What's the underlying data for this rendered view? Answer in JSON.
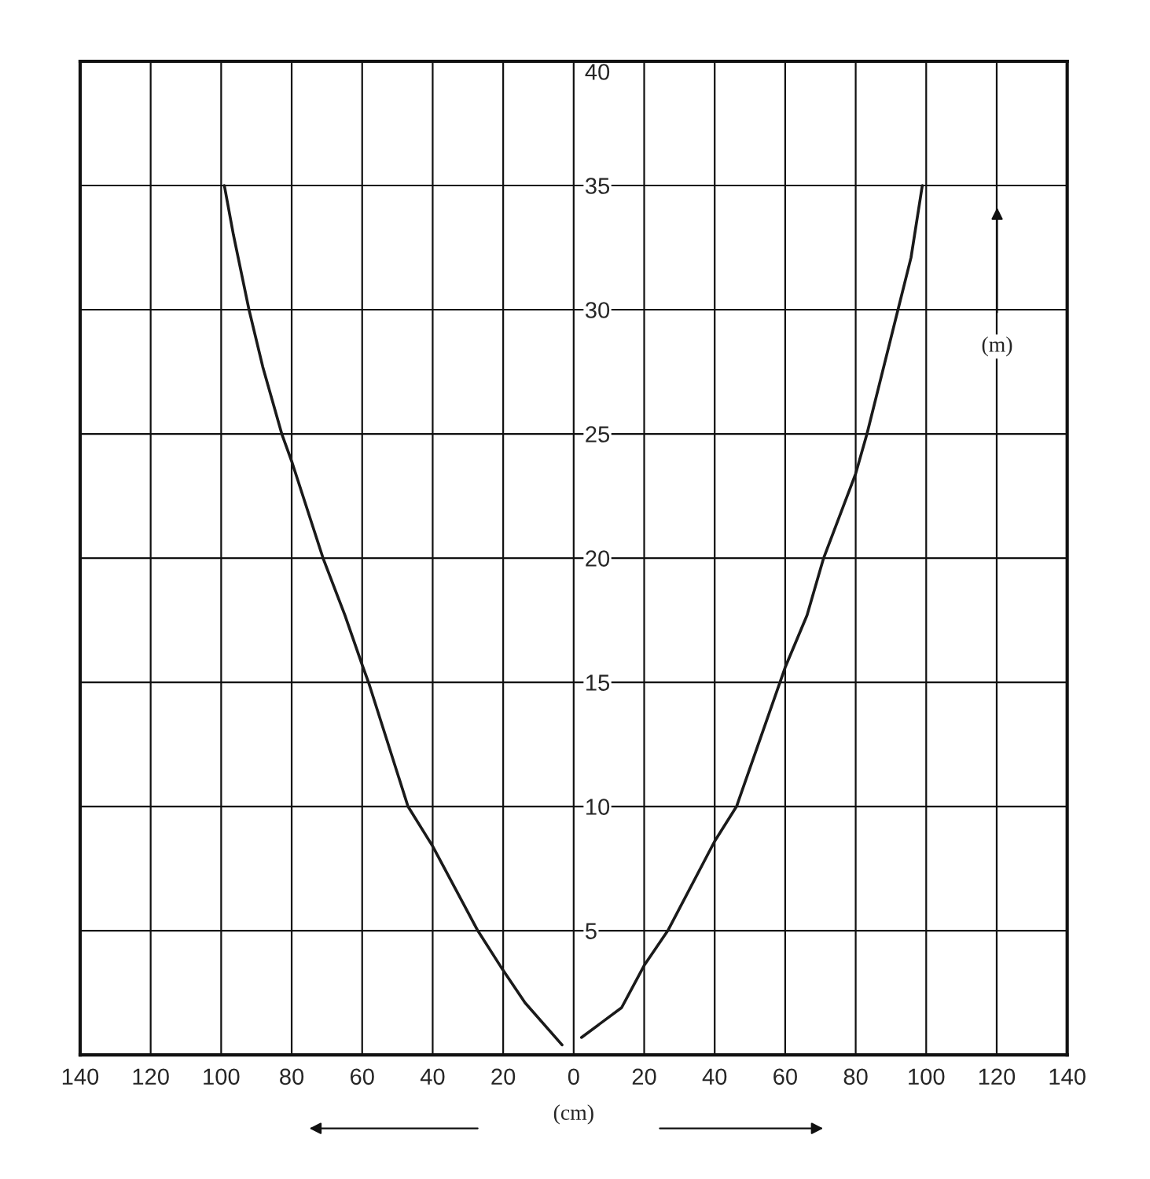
{
  "chart_data": {
    "type": "line",
    "xlabel": "(cm)",
    "ylabel": "(m)",
    "series": [
      {
        "color": "#1a1a1a",
        "x": [
          -99.1,
          -96.5,
          -92.1,
          -88.2,
          -82.8,
          -80,
          -71.1,
          -64.9,
          -60,
          -58.2,
          -47,
          -40,
          -27.2,
          -20,
          -13.8,
          -3.3
        ],
        "values": [
          35,
          33.0,
          30,
          27.7,
          25,
          23.9,
          20,
          17.7,
          15.7,
          15,
          10,
          8.4,
          5,
          3.4,
          2.1,
          0.4
        ]
      },
      {
        "color": "#1a1a1a",
        "x": [
          2.2,
          13.6,
          20,
          26.7,
          40,
          46.2,
          60,
          66.2,
          70.9,
          80,
          83.2,
          92.0,
          95.7,
          98.9
        ],
        "values": [
          0.7,
          1.9,
          3.6,
          5,
          8.6,
          10,
          15.6,
          17.7,
          20,
          23.4,
          25,
          30,
          32.1,
          35
        ]
      }
    ],
    "xlim": [
      -140,
      140
    ],
    "xticks": [
      {
        "value": -140,
        "label": "140"
      },
      {
        "value": -120,
        "label": "120"
      },
      {
        "value": -100,
        "label": "100"
      },
      {
        "value": -80,
        "label": "80"
      },
      {
        "value": -60,
        "label": "60"
      },
      {
        "value": -40,
        "label": "40"
      },
      {
        "value": -20,
        "label": "20"
      },
      0,
      20,
      40,
      60,
      80,
      100,
      120,
      140
    ],
    "ylim": [
      0,
      40
    ],
    "yticks": [
      5,
      10,
      15,
      20,
      25,
      30,
      35,
      40
    ],
    "grid": true,
    "marker": "none",
    "line_style": "solid"
  }
}
